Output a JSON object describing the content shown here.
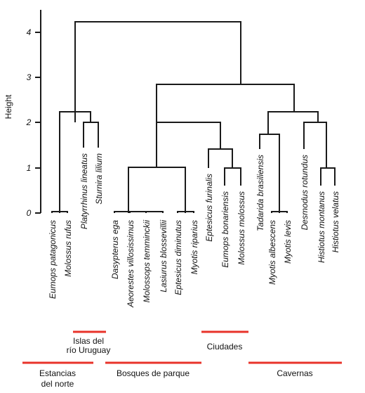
{
  "y_axis": {
    "title": "Height",
    "ticks": [
      "0",
      "1",
      "2",
      "3",
      "4"
    ]
  },
  "leaves": [
    "Eumops patagonicus",
    "Molossus rufus",
    "Platyrrhinus lineatus",
    "Sturnira lilium",
    "Dasypterus ega",
    "Aeorestes villosissimus",
    "Molossops temminckii",
    "Lasiurus blossevillii",
    "Eptesicus diminutus",
    "Myotis riparius",
    "Eptesicus furinalis",
    "Eumops bonariensis",
    "Molossus molossus",
    "Tadarida brasiliensis",
    "Myotis albescens",
    "Myotis levis",
    "Desmodus rotundus",
    "Histiotus montanus",
    "Histiotus velatus"
  ],
  "groups": [
    {
      "label_lines": [
        "Islas del",
        "río Uruguay"
      ]
    },
    {
      "label_lines": [
        "Ciudades"
      ]
    },
    {
      "label_lines": [
        "Estancias",
        "del norte"
      ]
    },
    {
      "label_lines": [
        "Bosques de parque"
      ]
    },
    {
      "label_lines": [
        "Cavernas"
      ]
    }
  ]
}
